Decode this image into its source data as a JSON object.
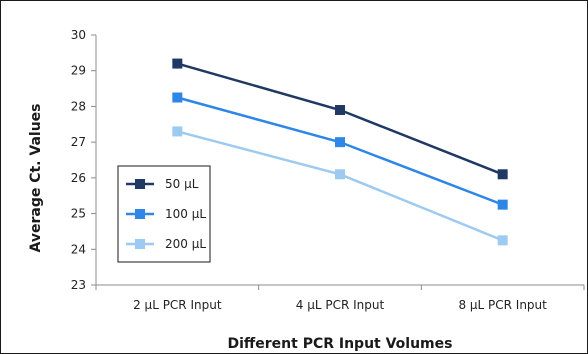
{
  "chart_data": {
    "type": "line",
    "categories": [
      "2 µL PCR Input",
      "4 µL PCR Input",
      "8 µL PCR Input"
    ],
    "series": [
      {
        "name": "50 µL",
        "values": [
          29.2,
          27.9,
          26.1
        ],
        "color": "#1f3864",
        "marker": "square"
      },
      {
        "name": "100 µL",
        "values": [
          28.25,
          27.0,
          25.25
        ],
        "color": "#2e86e6",
        "marker": "square"
      },
      {
        "name": "200 µL",
        "values": [
          27.3,
          26.1,
          24.25
        ],
        "color": "#9ccaf0",
        "marker": "square"
      }
    ],
    "title": "",
    "xlabel": "Different PCR Input Volumes",
    "ylabel": "Average Ct. Values",
    "ylim": [
      23,
      30
    ],
    "yticks": [
      "23",
      "24",
      "25",
      "26",
      "27",
      "28",
      "29",
      "30"
    ],
    "grid": false,
    "legend": "bottom-left"
  }
}
